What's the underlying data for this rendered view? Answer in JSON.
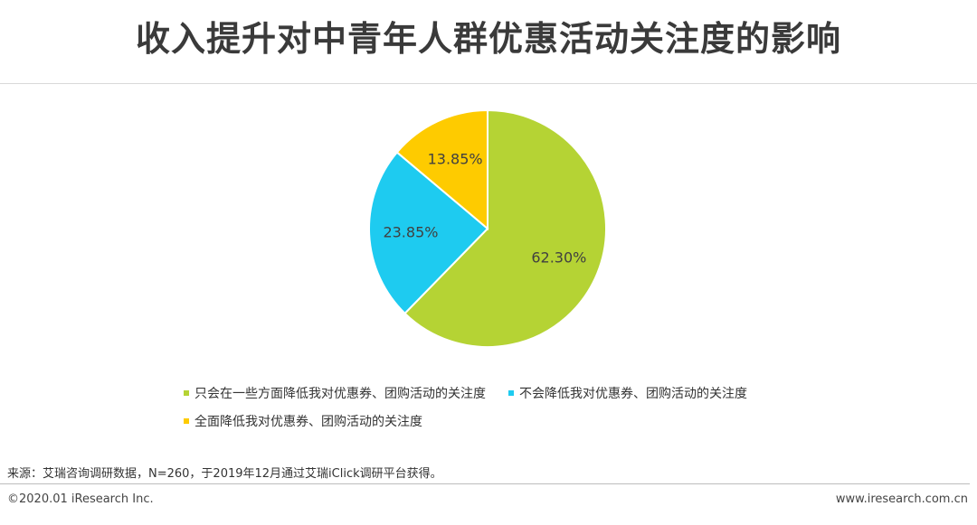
{
  "title": "收入提升对中青年人群优惠活动关注度的影响",
  "chart_data": {
    "type": "pie",
    "title": "",
    "slices": [
      {
        "label": "只会在一些方面降低我对优惠券、团购活动的关注度",
        "value": 62.3,
        "display": "62.30%",
        "color": "#b5d334"
      },
      {
        "label": "不会降低我对优惠券、团购活动的关注度",
        "value": 23.85,
        "display": "23.85%",
        "color": "#1ecbf0"
      },
      {
        "label": "全面降低我对优惠券、团购活动的关注度",
        "value": 13.85,
        "display": "13.85%",
        "color": "#fecb00"
      }
    ],
    "legend_position": "bottom"
  },
  "source": "来源：艾瑞咨询调研数据，N=260，于2019年12月通过艾瑞iClick调研平台获得。",
  "copyright": "©2020.01 iResearch Inc.",
  "website": "www.iresearch.com.cn"
}
